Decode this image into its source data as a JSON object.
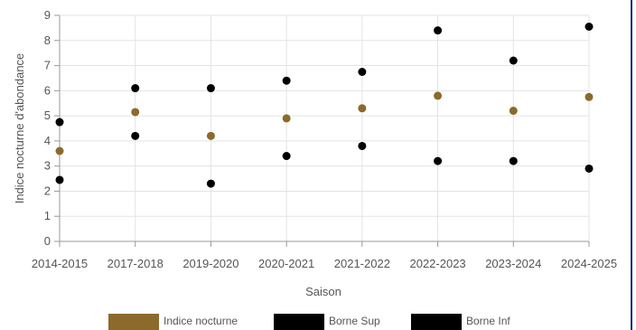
{
  "chart_data": {
    "type": "scatter",
    "categories": [
      "2014-2015",
      "2017-2018",
      "2019-2020",
      "2020-2021",
      "2021-2022",
      "2022-2023",
      "2023-2024",
      "2024-2025"
    ],
    "series": [
      {
        "name": "Indice nocturne",
        "color": "#8b6a2b",
        "values": [
          3.6,
          5.15,
          4.2,
          4.9,
          5.3,
          5.8,
          5.2,
          5.75
        ]
      },
      {
        "name": "Borne Sup",
        "color": "#000000",
        "values": [
          4.75,
          6.1,
          6.1,
          6.4,
          6.75,
          8.4,
          7.2,
          8.55
        ]
      },
      {
        "name": "Borne Inf",
        "color": "#000000",
        "values": [
          2.45,
          4.2,
          2.3,
          3.4,
          3.8,
          3.2,
          3.2,
          2.9
        ]
      }
    ],
    "xlabel": "Saison",
    "ylabel": "Indice nocturne d'abondance",
    "ylim": [
      0,
      9
    ],
    "yticks": [
      "0",
      "1",
      "2",
      "3",
      "4",
      "5",
      "6",
      "7",
      "8",
      "9"
    ],
    "grid": true,
    "legend_position": "bottom"
  }
}
